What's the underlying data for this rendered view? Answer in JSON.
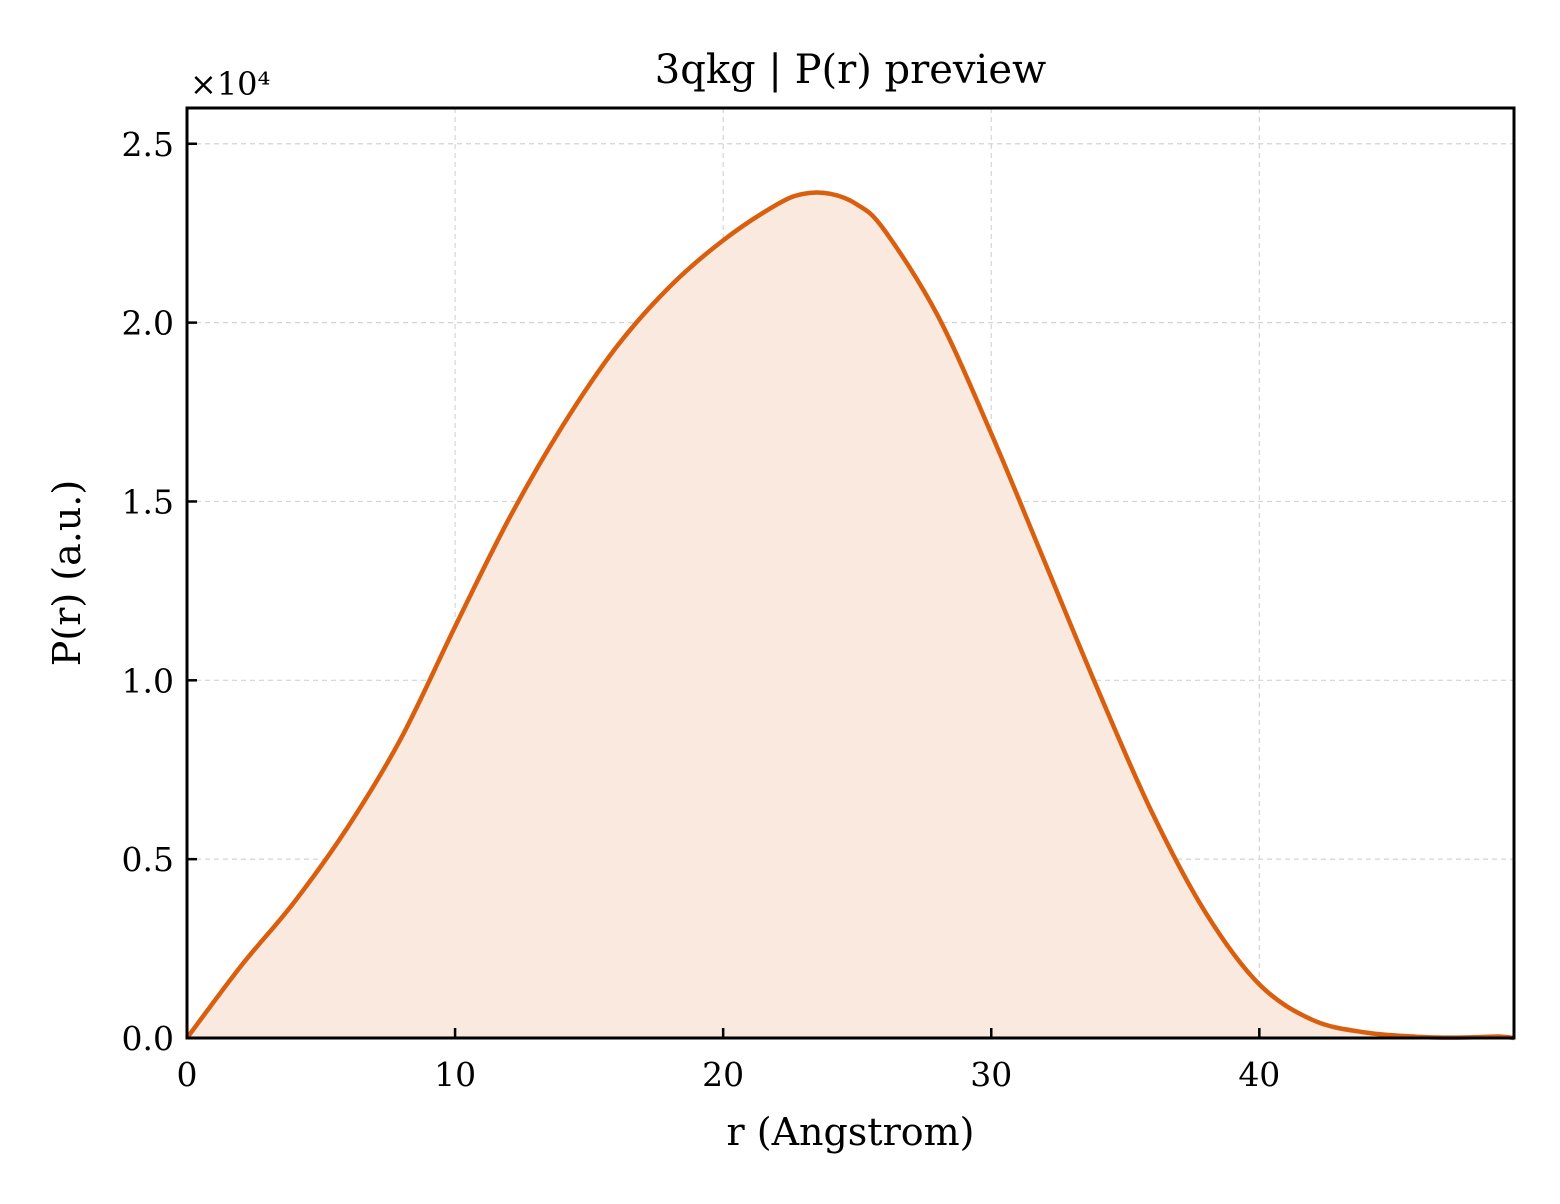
{
  "chart_data": {
    "type": "area",
    "title": "3qkg | P(r) preview",
    "xlabel": "r (Angstrom)",
    "ylabel": "P(r) (a.u.)",
    "y_offset_label": "×10⁴",
    "xlim": [
      0,
      49.5
    ],
    "ylim": [
      0,
      26000
    ],
    "grid": true,
    "x_ticks": [
      0,
      10,
      20,
      30,
      40
    ],
    "x_tick_labels": [
      "0",
      "10",
      "20",
      "30",
      "40"
    ],
    "y_ticks": [
      0,
      5000,
      10000,
      15000,
      20000,
      25000
    ],
    "y_tick_labels": [
      "0.0",
      "0.5",
      "1.0",
      "1.5",
      "2.0",
      "2.5"
    ],
    "line_color": "#d95f0e",
    "fill_color": "#f9e9df",
    "series": [
      {
        "x": [
          0,
          2,
          4,
          6,
          8,
          10,
          12,
          14,
          16,
          18,
          20,
          22,
          23,
          24,
          25,
          26,
          28,
          30,
          32,
          34,
          36,
          38,
          40,
          42,
          44,
          46,
          47,
          48,
          49,
          49.5
        ],
        "y": [
          0,
          2000,
          3800,
          5900,
          8400,
          11500,
          14500,
          17100,
          19300,
          21000,
          22300,
          23300,
          23600,
          23600,
          23300,
          22600,
          20200,
          16900,
          13300,
          9700,
          6300,
          3500,
          1500,
          500,
          150,
          30,
          10,
          20,
          40,
          0
        ]
      }
    ]
  }
}
